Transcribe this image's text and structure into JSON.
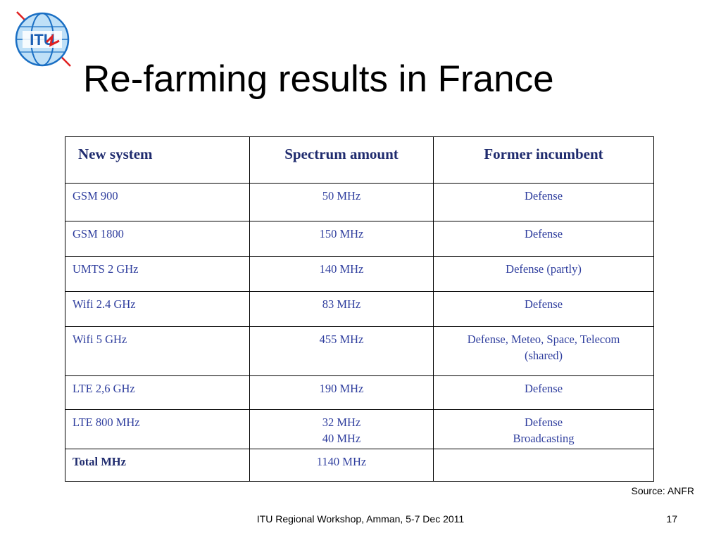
{
  "logo": {
    "text": "ITU",
    "colors": {
      "blue": "#1a6fc4",
      "light_blue": "#6fb4e8",
      "red": "#e02020"
    }
  },
  "title": "Re-farming results in France",
  "table": {
    "headers": [
      "New system",
      "Spectrum amount",
      "Former incumbent"
    ],
    "rows": [
      {
        "system": [
          "GSM 900"
        ],
        "amount": [
          "50 MHz"
        ],
        "incumbent": [
          "Defense"
        ]
      },
      {
        "system": [
          "GSM 1800"
        ],
        "amount": [
          "150 MHz"
        ],
        "incumbent": [
          "Defense"
        ]
      },
      {
        "system": [
          "UMTS 2 GHz"
        ],
        "amount": [
          "140 MHz"
        ],
        "incumbent": [
          "Defense (partly)"
        ]
      },
      {
        "system": [
          "Wifi 2.4 GHz"
        ],
        "amount": [
          "83 MHz"
        ],
        "incumbent": [
          "Defense"
        ]
      },
      {
        "system": [
          "Wifi 5 GHz"
        ],
        "amount": [
          "455 MHz"
        ],
        "incumbent": [
          "Defense, Meteo, Space, Telecom",
          "(shared)"
        ]
      },
      {
        "system": [
          "LTE 2,6 GHz"
        ],
        "amount": [
          "190 MHz"
        ],
        "incumbent": [
          "Defense"
        ]
      },
      {
        "system": [
          "LTE 800 MHz"
        ],
        "amount": [
          "32 MHz",
          "40 MHz"
        ],
        "incumbent": [
          "Defense",
          "Broadcasting"
        ]
      },
      {
        "system": [
          "Total MHz"
        ],
        "amount": [
          "1140 MHz"
        ],
        "incumbent": [],
        "is_total": true
      }
    ]
  },
  "source": "Source: ANFR",
  "footer": "ITU Regional Workshop, Amman, 5-7 Dec 2011",
  "page_number": "17"
}
